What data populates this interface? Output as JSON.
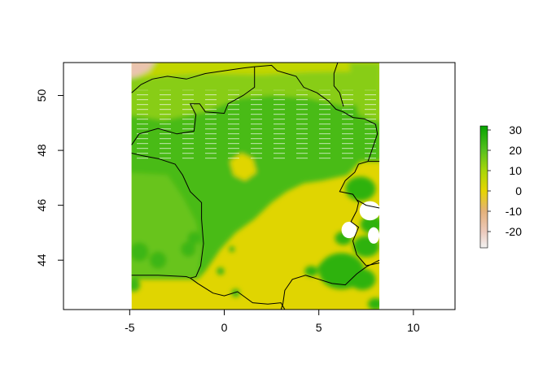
{
  "chart_data": {
    "type": "raster-map",
    "title": "",
    "xlabel": "",
    "ylabel": "",
    "xlim": [
      -8.5,
      12.2
    ],
    "ylim": [
      42.2,
      51.2
    ],
    "raster_extent": {
      "xmin": -4.9,
      "xmax": 8.2,
      "ymin": 42.2,
      "ymax": 51.2
    },
    "x_ticks": [
      {
        "value": -5,
        "label": "-5"
      },
      {
        "value": 0,
        "label": "0"
      },
      {
        "value": 5,
        "label": "5"
      },
      {
        "value": 10,
        "label": "10"
      }
    ],
    "y_ticks": [
      {
        "value": 44,
        "label": "44"
      },
      {
        "value": 46,
        "label": "46"
      },
      {
        "value": 48,
        "label": "48"
      },
      {
        "value": 50,
        "label": "50"
      }
    ],
    "legend": {
      "min": -28,
      "max": 32,
      "ticks": [
        {
          "value": 30,
          "label": "30"
        },
        {
          "value": 20,
          "label": "20"
        },
        {
          "value": 10,
          "label": "10"
        },
        {
          "value": 0,
          "label": "0"
        },
        {
          "value": -10,
          "label": "-10"
        },
        {
          "value": -20,
          "label": "-20"
        }
      ],
      "color_stops": [
        {
          "value": -28,
          "color": "#f2f2f2"
        },
        {
          "value": -20,
          "color": "#ecc9bc"
        },
        {
          "value": -10,
          "color": "#e4b17a"
        },
        {
          "value": 0,
          "color": "#e6d500"
        },
        {
          "value": 10,
          "color": "#a8d60a"
        },
        {
          "value": 20,
          "color": "#57c01e"
        },
        {
          "value": 32,
          "color": "#06a300"
        }
      ]
    },
    "regions": [
      {
        "name": "north-strip",
        "value": 6
      },
      {
        "name": "northwest-corner",
        "value": -18
      },
      {
        "name": "northern-band",
        "value": 14
      },
      {
        "name": "central-north",
        "value": 22
      },
      {
        "name": "western-coast",
        "value": 18
      },
      {
        "name": "southeast-basin",
        "value": 1
      },
      {
        "name": "pyrenees-patches",
        "value": 24
      },
      {
        "name": "alps-patches",
        "value": 26
      },
      {
        "name": "northeast-lobe",
        "value": 14
      }
    ],
    "border_lines": [
      [
        [
          -4.9,
          50.1
        ],
        [
          -4.4,
          50.4
        ],
        [
          -3.8,
          50.6
        ],
        [
          -3.0,
          50.7
        ],
        [
          -2.0,
          50.6
        ],
        [
          -1.0,
          50.8
        ],
        [
          0.0,
          50.9
        ],
        [
          1.0,
          51.0
        ],
        [
          1.6,
          51.05
        ]
      ],
      [
        [
          1.6,
          51.05
        ],
        [
          2.5,
          51.1
        ],
        [
          2.8,
          50.9
        ],
        [
          3.3,
          50.8
        ],
        [
          3.8,
          50.7
        ],
        [
          4.2,
          50.3
        ],
        [
          4.9,
          50.1
        ],
        [
          5.5,
          49.8
        ],
        [
          5.9,
          49.5
        ],
        [
          6.3,
          49.4
        ],
        [
          6.8,
          49.2
        ],
        [
          7.4,
          49.15
        ],
        [
          8.0,
          48.95
        ],
        [
          8.1,
          48.6
        ],
        [
          7.8,
          48.0
        ],
        [
          7.6,
          47.6
        ]
      ],
      [
        [
          6.0,
          51.2
        ],
        [
          5.8,
          50.8
        ],
        [
          5.8,
          50.35
        ],
        [
          6.1,
          50.1
        ],
        [
          6.3,
          49.6
        ]
      ],
      [
        [
          7.6,
          47.6
        ],
        [
          7.1,
          47.5
        ],
        [
          6.9,
          47.2
        ],
        [
          6.4,
          46.9
        ],
        [
          6.1,
          46.5
        ],
        [
          6.8,
          46.4
        ],
        [
          7.1,
          46.1
        ],
        [
          7.0,
          45.8
        ],
        [
          6.7,
          45.4
        ],
        [
          7.1,
          45.2
        ],
        [
          6.8,
          44.7
        ],
        [
          7.0,
          44.2
        ],
        [
          7.5,
          43.8
        ]
      ],
      [
        [
          -1.8,
          43.35
        ],
        [
          -1.4,
          43.15
        ],
        [
          -0.6,
          42.8
        ],
        [
          0.0,
          42.7
        ],
        [
          0.7,
          42.85
        ],
        [
          1.5,
          42.45
        ],
        [
          2.3,
          42.4
        ],
        [
          3.0,
          42.45
        ],
        [
          3.2,
          42.2
        ]
      ],
      [
        [
          -4.9,
          43.45
        ],
        [
          -3.5,
          43.45
        ],
        [
          -2.0,
          43.4
        ],
        [
          -1.8,
          43.35
        ]
      ],
      [
        [
          3.0,
          42.2
        ],
        [
          3.1,
          42.4
        ],
        [
          3.2,
          42.9
        ],
        [
          3.6,
          43.3
        ],
        [
          4.3,
          43.45
        ],
        [
          5.0,
          43.3
        ],
        [
          5.7,
          43.15
        ],
        [
          6.4,
          43.1
        ],
        [
          7.0,
          43.5
        ],
        [
          7.5,
          43.75
        ],
        [
          8.2,
          44.0
        ]
      ],
      [
        [
          -4.9,
          47.9
        ],
        [
          -4.3,
          47.8
        ],
        [
          -3.5,
          47.7
        ],
        [
          -2.6,
          47.5
        ],
        [
          -2.2,
          47.1
        ],
        [
          -1.8,
          46.5
        ],
        [
          -1.2,
          46.1
        ],
        [
          -1.2,
          45.5
        ],
        [
          -1.1,
          44.6
        ],
        [
          -1.25,
          43.8
        ],
        [
          -1.5,
          43.4
        ],
        [
          -1.8,
          43.35
        ]
      ],
      [
        [
          -4.9,
          48.2
        ],
        [
          -4.5,
          48.6
        ],
        [
          -3.5,
          48.8
        ],
        [
          -2.5,
          48.6
        ],
        [
          -1.6,
          48.7
        ],
        [
          -1.5,
          49.3
        ],
        [
          -1.8,
          49.7
        ],
        [
          -1.3,
          49.7
        ],
        [
          -1.0,
          49.4
        ],
        [
          0.0,
          49.35
        ],
        [
          0.2,
          49.7
        ],
        [
          1.0,
          50.0
        ],
        [
          1.6,
          50.3
        ],
        [
          1.6,
          51.05
        ]
      ],
      [
        [
          7.6,
          47.6
        ],
        [
          8.2,
          47.6
        ]
      ],
      [
        [
          7.5,
          43.8
        ],
        [
          8.2,
          43.9
        ]
      ],
      [
        [
          7.0,
          46.2
        ],
        [
          7.5,
          46.0
        ],
        [
          8.2,
          45.9
        ]
      ]
    ]
  }
}
